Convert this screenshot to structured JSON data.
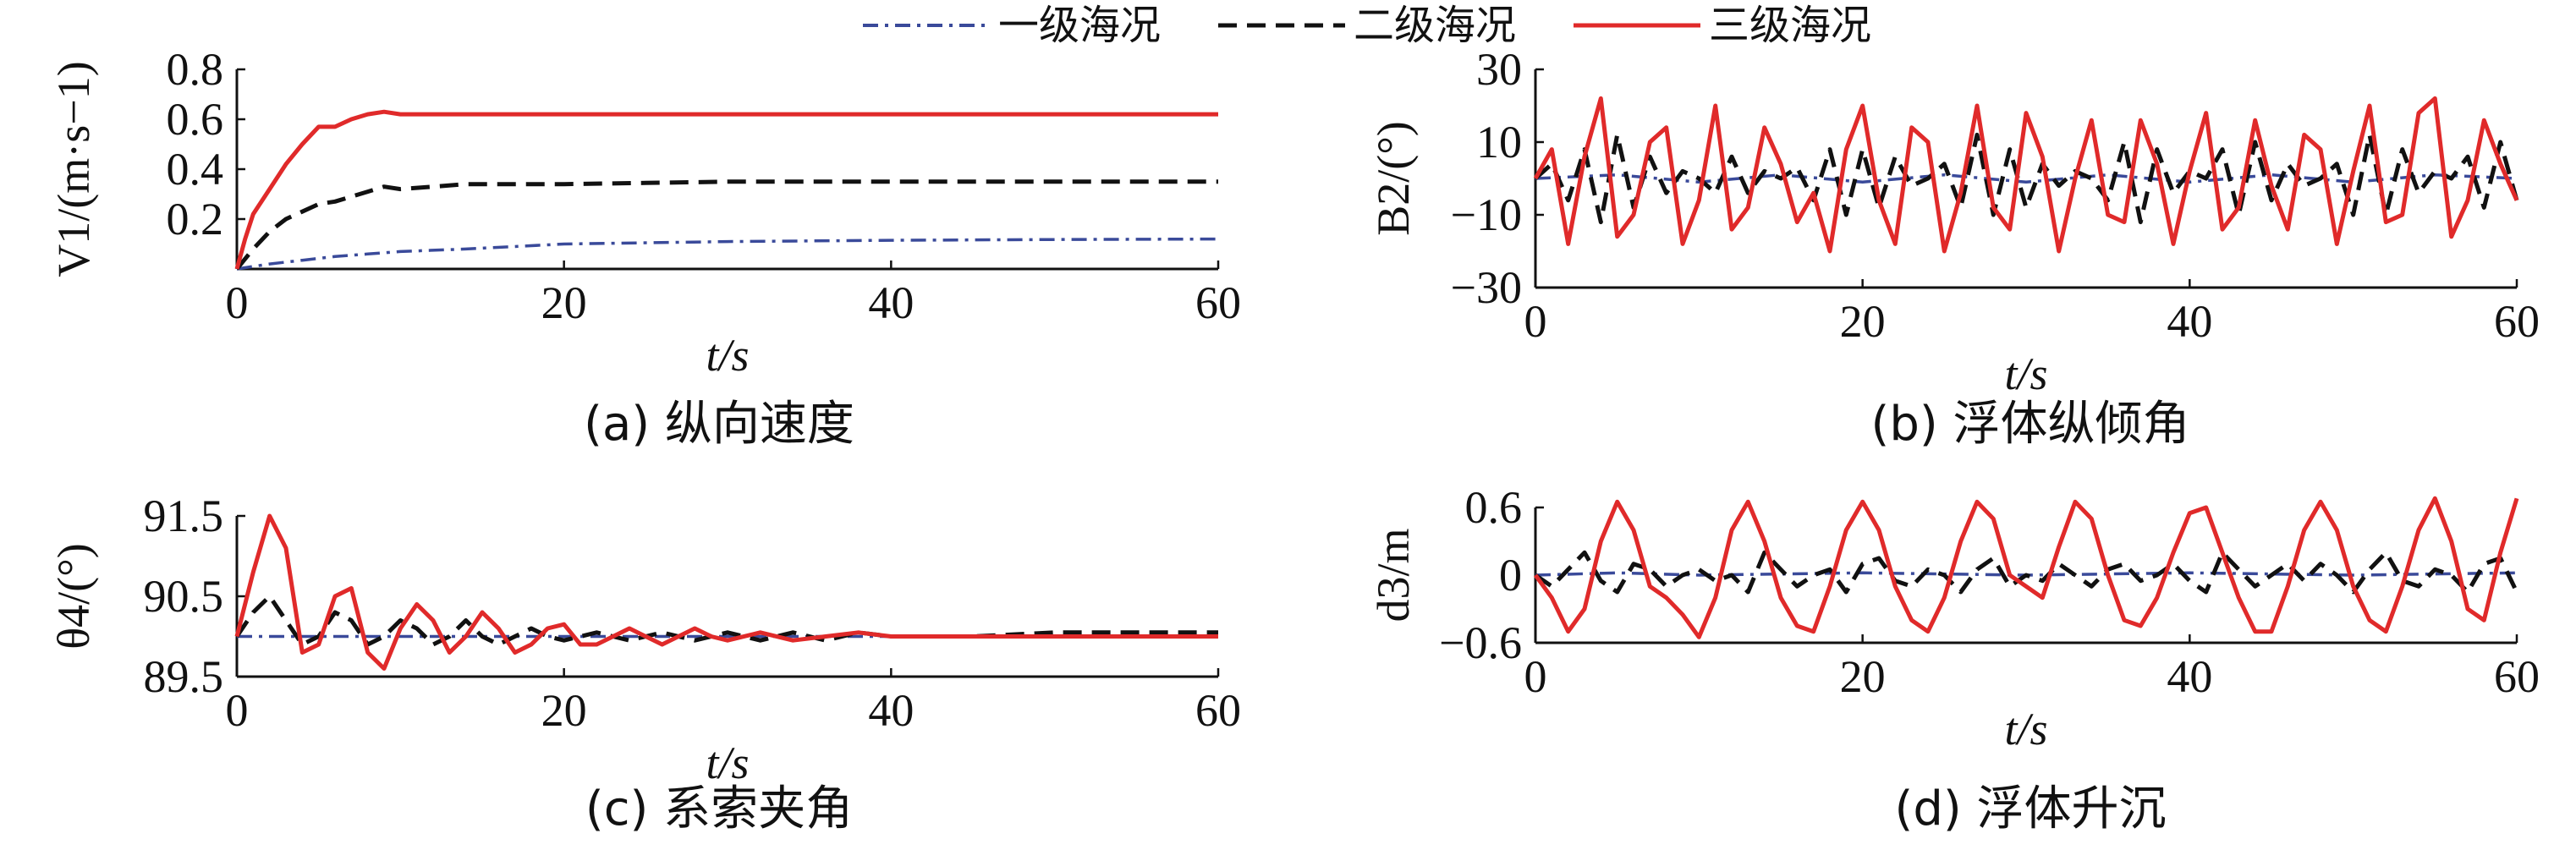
{
  "legend": {
    "items": [
      {
        "label": "一级海况",
        "color": "#3a4a9a",
        "dash": "dashdot"
      },
      {
        "label": "二级海况",
        "color": "#111111",
        "dash": "dashed"
      },
      {
        "label": "三级海况",
        "color": "#e02a2a",
        "dash": "solid"
      }
    ]
  },
  "chart_data": [
    {
      "type": "line",
      "caption": "(a) 纵向速度",
      "xlabel": "t/s",
      "ylabel": "V1/(m·s−1)",
      "xlim": [
        0,
        60
      ],
      "ylim": [
        0,
        0.8
      ],
      "xticks": [
        "0",
        "20",
        "40",
        "60"
      ],
      "yticks": [
        "0.2",
        "0.4",
        "0.6",
        "0.8"
      ],
      "series": [
        {
          "name": "一级海况",
          "x": [
            0,
            2,
            4,
            6,
            8,
            10,
            14,
            20,
            30,
            40,
            50,
            60
          ],
          "y": [
            0.0,
            0.02,
            0.035,
            0.05,
            0.06,
            0.07,
            0.08,
            0.1,
            0.11,
            0.115,
            0.118,
            0.12
          ]
        },
        {
          "name": "二级海况",
          "x": [
            0,
            1,
            2,
            3,
            4,
            5,
            6,
            7,
            8,
            9,
            10,
            12,
            14,
            20,
            30,
            40,
            50,
            60
          ],
          "y": [
            0.0,
            0.08,
            0.15,
            0.2,
            0.23,
            0.26,
            0.27,
            0.29,
            0.31,
            0.33,
            0.32,
            0.33,
            0.34,
            0.34,
            0.35,
            0.35,
            0.35,
            0.35
          ]
        },
        {
          "name": "三级海况",
          "x": [
            0,
            0.5,
            1,
            2,
            3,
            4,
            5,
            6,
            7,
            8,
            9,
            10,
            12,
            14,
            16,
            20,
            30,
            40,
            50,
            60
          ],
          "y": [
            0.0,
            0.12,
            0.22,
            0.32,
            0.42,
            0.5,
            0.57,
            0.57,
            0.6,
            0.62,
            0.63,
            0.62,
            0.62,
            0.62,
            0.62,
            0.62,
            0.62,
            0.62,
            0.62,
            0.62
          ]
        }
      ]
    },
    {
      "type": "line",
      "caption": "(b) 浮体纵倾角",
      "xlabel": "t/s",
      "ylabel": "B2/(°)",
      "xlim": [
        0,
        60
      ],
      "ylim": [
        -30,
        30
      ],
      "xticks": [
        "0",
        "20",
        "40",
        "60"
      ],
      "yticks": [
        "−30",
        "−10",
        "10",
        "30"
      ],
      "series": [
        {
          "name": "一级海况",
          "x": [
            0,
            5,
            10,
            15,
            20,
            25,
            30,
            35,
            40,
            45,
            50,
            55,
            60
          ],
          "y": [
            0,
            1,
            -1,
            1,
            -1,
            1,
            -1,
            1,
            -1,
            1,
            -1,
            1,
            0
          ]
        },
        {
          "name": "二级海况",
          "x": [
            0,
            1,
            2,
            3,
            4,
            5,
            6,
            7,
            8,
            9,
            10,
            11,
            12,
            13,
            14,
            15,
            16,
            17,
            18,
            19,
            20,
            21,
            22,
            23,
            24,
            25,
            26,
            27,
            28,
            29,
            30,
            31,
            32,
            33,
            34,
            35,
            36,
            37,
            38,
            39,
            40,
            41,
            42,
            43,
            44,
            45,
            46,
            47,
            48,
            49,
            50,
            51,
            52,
            53,
            54,
            55,
            56,
            57,
            58,
            59,
            60
          ],
          "y": [
            0,
            4,
            -6,
            8,
            -12,
            12,
            -8,
            6,
            -4,
            2,
            0,
            -4,
            6,
            -4,
            2,
            0,
            3,
            -6,
            8,
            -10,
            8,
            -8,
            6,
            -2,
            0,
            4,
            -8,
            12,
            -10,
            8,
            -8,
            4,
            -2,
            2,
            0,
            -6,
            10,
            -12,
            8,
            -4,
            2,
            0,
            8,
            -10,
            10,
            -6,
            4,
            -2,
            0,
            4,
            -10,
            12,
            -10,
            8,
            -4,
            2,
            0,
            6,
            -8,
            10,
            -6
          ]
        },
        {
          "name": "三级海况",
          "x": [
            0,
            1,
            2,
            3,
            4,
            5,
            6,
            7,
            8,
            9,
            10,
            11,
            12,
            13,
            14,
            15,
            16,
            17,
            18,
            19,
            20,
            21,
            22,
            23,
            24,
            25,
            26,
            27,
            28,
            29,
            30,
            31,
            32,
            33,
            34,
            35,
            36,
            37,
            38,
            39,
            40,
            41,
            42,
            43,
            44,
            45,
            46,
            47,
            48,
            49,
            50,
            51,
            52,
            53,
            54,
            55,
            56,
            57,
            58,
            59,
            60
          ],
          "y": [
            0,
            8,
            -18,
            6,
            22,
            -16,
            -10,
            10,
            14,
            -18,
            -6,
            20,
            -14,
            -8,
            14,
            4,
            -12,
            -4,
            -20,
            8,
            20,
            -6,
            -18,
            14,
            10,
            -20,
            -4,
            20,
            -8,
            -14,
            18,
            6,
            -20,
            0,
            16,
            -10,
            -12,
            16,
            4,
            -18,
            2,
            18,
            -14,
            -8,
            16,
            -2,
            -14,
            12,
            8,
            -18,
            2,
            20,
            -12,
            -10,
            18,
            22,
            -16,
            -6,
            16,
            4,
            -6
          ]
        }
      ]
    },
    {
      "type": "line",
      "caption": "(c) 系索夹角",
      "xlabel": "t/s",
      "ylabel": "θ4/(°)",
      "xlim": [
        0,
        60
      ],
      "ylim": [
        89.5,
        91.5
      ],
      "xticks": [
        "0",
        "20",
        "40",
        "60"
      ],
      "yticks": [
        "89.5",
        "90.5",
        "91.5"
      ],
      "series": [
        {
          "name": "一级海况",
          "x": [
            0,
            5,
            10,
            15,
            20,
            30,
            40,
            50,
            60
          ],
          "y": [
            90.0,
            90.0,
            90.0,
            90.0,
            90.0,
            90.0,
            90.0,
            90.0,
            90.0
          ]
        },
        {
          "name": "二级海况",
          "x": [
            0,
            1,
            2,
            3,
            4,
            5,
            6,
            7,
            8,
            9,
            10,
            11,
            12,
            13,
            14,
            15,
            16,
            17,
            18,
            19,
            20,
            22,
            24,
            26,
            28,
            30,
            32,
            34,
            36,
            38,
            40,
            45,
            50,
            55,
            60
          ],
          "y": [
            90.0,
            90.3,
            90.5,
            90.2,
            89.9,
            90.0,
            90.3,
            90.2,
            89.9,
            90.0,
            90.2,
            90.1,
            89.9,
            90.0,
            90.2,
            90.0,
            89.9,
            90.0,
            90.1,
            90.0,
            89.95,
            90.05,
            89.95,
            90.05,
            89.95,
            90.05,
            89.95,
            90.05,
            89.95,
            90.05,
            90.0,
            90.0,
            90.05,
            90.05,
            90.05
          ]
        },
        {
          "name": "三级海况",
          "x": [
            0,
            1,
            2,
            3,
            4,
            5,
            6,
            7,
            8,
            9,
            10,
            11,
            12,
            13,
            14,
            15,
            16,
            17,
            18,
            19,
            20,
            21,
            22,
            23,
            24,
            25,
            26,
            27,
            28,
            29,
            30,
            32,
            34,
            36,
            38,
            40,
            45,
            50,
            55,
            60
          ],
          "y": [
            90.0,
            90.8,
            91.5,
            91.1,
            89.8,
            89.9,
            90.5,
            90.6,
            89.8,
            89.6,
            90.1,
            90.4,
            90.2,
            89.8,
            90.0,
            90.3,
            90.1,
            89.8,
            89.9,
            90.1,
            90.15,
            89.9,
            89.9,
            90.0,
            90.1,
            90.0,
            89.9,
            90.0,
            90.1,
            90.0,
            89.95,
            90.05,
            89.95,
            90.0,
            90.05,
            90.0,
            90.0,
            90.0,
            90.0,
            90.0
          ]
        }
      ]
    },
    {
      "type": "line",
      "caption": "(d) 浮体升沉",
      "xlabel": "t/s",
      "ylabel": "d3/m",
      "xlim": [
        0,
        60
      ],
      "ylim": [
        -0.6,
        0.6
      ],
      "xticks": [
        "0",
        "20",
        "40",
        "60"
      ],
      "yticks": [
        "−0.6",
        "0",
        "0.6"
      ],
      "series": [
        {
          "name": "一级海况",
          "x": [
            0,
            5,
            10,
            20,
            30,
            40,
            50,
            60
          ],
          "y": [
            0.0,
            0.02,
            0.0,
            0.02,
            0.0,
            0.02,
            0.0,
            0.02
          ]
        },
        {
          "name": "二级海况",
          "x": [
            0,
            1,
            2,
            3,
            4,
            5,
            6,
            7,
            8,
            9,
            10,
            11,
            12,
            13,
            14,
            15,
            16,
            17,
            18,
            19,
            20,
            21,
            22,
            23,
            24,
            25,
            26,
            27,
            28,
            29,
            30,
            31,
            32,
            33,
            34,
            35,
            36,
            37,
            38,
            39,
            40,
            41,
            42,
            43,
            44,
            45,
            46,
            47,
            48,
            49,
            50,
            51,
            52,
            53,
            54,
            55,
            56,
            57,
            58,
            59,
            60
          ],
          "y": [
            0.0,
            -0.1,
            0.05,
            0.2,
            -0.05,
            -0.15,
            0.1,
            0.05,
            -0.1,
            0.0,
            0.05,
            -0.05,
            0.0,
            -0.15,
            0.2,
            0.05,
            -0.1,
            0.0,
            0.05,
            -0.15,
            0.1,
            0.15,
            -0.05,
            -0.1,
            0.05,
            0.0,
            -0.15,
            0.05,
            0.15,
            -0.1,
            0.0,
            -0.05,
            0.1,
            0.0,
            -0.1,
            0.05,
            0.1,
            -0.05,
            0.0,
            0.1,
            -0.05,
            -0.15,
            0.2,
            0.05,
            -0.1,
            0.0,
            0.1,
            -0.05,
            0.1,
            0.0,
            -0.15,
            0.05,
            0.2,
            -0.05,
            -0.1,
            0.05,
            0.0,
            -0.15,
            0.1,
            0.15,
            -0.15
          ]
        },
        {
          "name": "三级海况",
          "x": [
            0,
            1,
            2,
            3,
            4,
            5,
            6,
            7,
            8,
            9,
            10,
            11,
            12,
            13,
            14,
            15,
            16,
            17,
            18,
            19,
            20,
            21,
            22,
            23,
            24,
            25,
            26,
            27,
            28,
            29,
            30,
            31,
            32,
            33,
            34,
            35,
            36,
            37,
            38,
            39,
            40,
            41,
            42,
            43,
            44,
            45,
            46,
            47,
            48,
            49,
            50,
            51,
            52,
            53,
            54,
            55,
            56,
            57,
            58,
            59,
            60
          ],
          "y": [
            0.0,
            -0.2,
            -0.5,
            -0.3,
            0.3,
            0.65,
            0.4,
            -0.1,
            -0.2,
            -0.35,
            -0.55,
            -0.2,
            0.4,
            0.65,
            0.3,
            -0.2,
            -0.45,
            -0.5,
            -0.1,
            0.4,
            0.65,
            0.4,
            -0.1,
            -0.4,
            -0.5,
            -0.2,
            0.3,
            0.65,
            0.5,
            0.0,
            -0.1,
            -0.2,
            0.25,
            0.65,
            0.5,
            0.0,
            -0.4,
            -0.45,
            -0.2,
            0.2,
            0.55,
            0.6,
            0.2,
            -0.2,
            -0.5,
            -0.5,
            -0.1,
            0.4,
            0.65,
            0.4,
            -0.1,
            -0.4,
            -0.5,
            -0.1,
            0.4,
            0.68,
            0.3,
            -0.3,
            -0.4,
            0.2,
            0.68
          ]
        }
      ]
    }
  ]
}
